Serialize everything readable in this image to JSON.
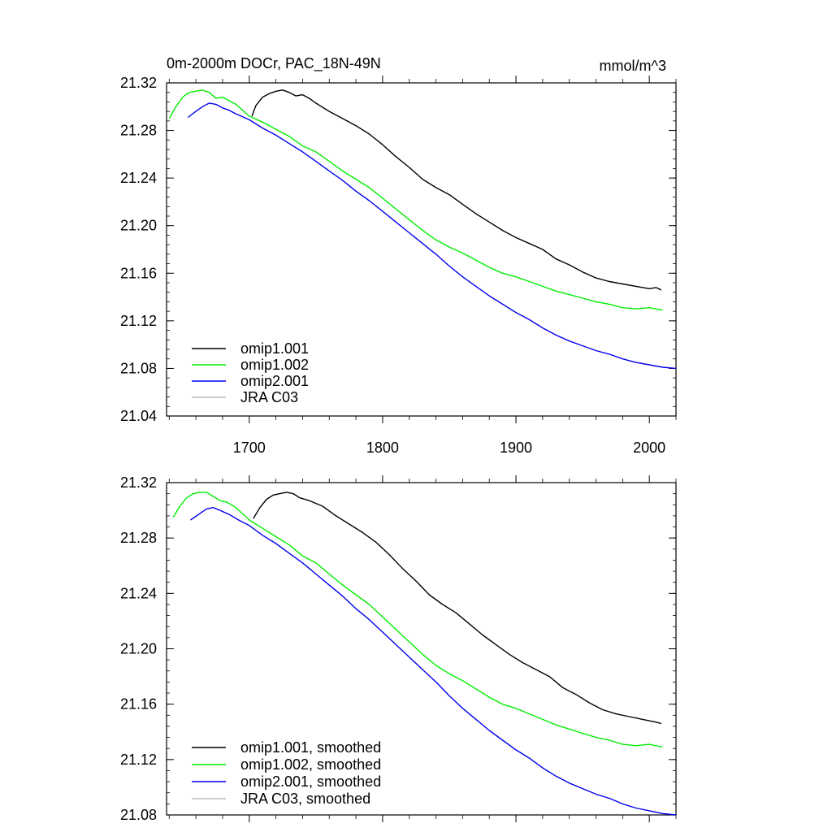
{
  "header": {
    "title": "0m-2000m DOCr, PAC_18N-49N",
    "units": "mmol/m^3"
  },
  "colors": {
    "omip1_001": "#000000",
    "omip1_002": "#00ee00",
    "omip2_001": "#0000ee",
    "jra_c03": "#bbbbbb"
  },
  "chart_data": [
    {
      "type": "line",
      "title": "0m-2000m DOCr, PAC_18N-49N",
      "units": "mmol/m^3",
      "xlim": [
        1638,
        2020
      ],
      "ylim": [
        21.04,
        21.32
      ],
      "x_ticks": [
        1700,
        1800,
        1900,
        2000
      ],
      "x_tick_labels": [
        "1700",
        "1800",
        "1900",
        "2000"
      ],
      "y_ticks": [
        21.04,
        21.08,
        21.12,
        21.16,
        21.2,
        21.24,
        21.28,
        21.32
      ],
      "y_tick_labels": [
        "21.04",
        "21.08",
        "21.12",
        "21.16",
        "21.20",
        "21.24",
        "21.28",
        "21.32"
      ],
      "legend_position": "bottom-left",
      "grid": false,
      "series": [
        {
          "name": "omip1.001",
          "color": "#000000",
          "x": [
            1702,
            1705,
            1710,
            1715,
            1720,
            1725,
            1730,
            1735,
            1740,
            1745,
            1750,
            1760,
            1770,
            1780,
            1790,
            1800,
            1810,
            1820,
            1830,
            1840,
            1850,
            1860,
            1870,
            1880,
            1890,
            1900,
            1910,
            1920,
            1930,
            1940,
            1950,
            1960,
            1970,
            1980,
            1990,
            2000,
            2005,
            2009
          ],
          "y": [
            21.292,
            21.301,
            21.308,
            21.311,
            21.313,
            21.314,
            21.312,
            21.309,
            21.31,
            21.307,
            21.303,
            21.296,
            21.29,
            21.284,
            21.277,
            21.268,
            21.258,
            21.249,
            21.239,
            21.232,
            21.226,
            21.218,
            21.21,
            21.203,
            21.196,
            21.19,
            21.185,
            21.18,
            21.172,
            21.167,
            21.161,
            21.156,
            21.153,
            21.151,
            21.149,
            21.147,
            21.148,
            21.146
          ]
        },
        {
          "name": "omip1.002",
          "color": "#00ee00",
          "x": [
            1640,
            1645,
            1650,
            1655,
            1660,
            1665,
            1670,
            1675,
            1680,
            1685,
            1690,
            1695,
            1700,
            1710,
            1720,
            1730,
            1740,
            1750,
            1760,
            1770,
            1780,
            1790,
            1800,
            1810,
            1820,
            1830,
            1840,
            1850,
            1860,
            1870,
            1880,
            1890,
            1900,
            1910,
            1920,
            1930,
            1940,
            1950,
            1960,
            1970,
            1980,
            1990,
            2000,
            2005,
            2010
          ],
          "y": [
            21.29,
            21.3,
            21.308,
            21.312,
            21.313,
            21.314,
            21.312,
            21.307,
            21.308,
            21.305,
            21.302,
            21.297,
            21.292,
            21.287,
            21.281,
            21.275,
            21.267,
            21.262,
            21.254,
            21.246,
            21.239,
            21.232,
            21.223,
            21.214,
            21.205,
            21.196,
            21.188,
            21.182,
            21.177,
            21.171,
            21.165,
            21.16,
            21.157,
            21.153,
            21.149,
            21.145,
            21.142,
            21.139,
            21.136,
            21.134,
            21.131,
            21.13,
            21.131,
            21.13,
            21.129
          ]
        },
        {
          "name": "omip2.001",
          "color": "#0000ee",
          "x": [
            1654,
            1660,
            1665,
            1670,
            1675,
            1680,
            1685,
            1690,
            1700,
            1710,
            1720,
            1730,
            1740,
            1750,
            1760,
            1770,
            1780,
            1790,
            1800,
            1810,
            1820,
            1830,
            1840,
            1850,
            1860,
            1870,
            1880,
            1890,
            1900,
            1910,
            1920,
            1930,
            1940,
            1950,
            1960,
            1970,
            1980,
            1990,
            2000,
            2010,
            2020
          ],
          "y": [
            21.291,
            21.296,
            21.3,
            21.303,
            21.302,
            21.299,
            21.297,
            21.294,
            21.289,
            21.282,
            21.276,
            21.269,
            21.262,
            21.254,
            21.246,
            21.238,
            21.229,
            21.221,
            21.212,
            21.203,
            21.194,
            21.185,
            21.176,
            21.166,
            21.157,
            21.149,
            21.141,
            21.134,
            21.127,
            21.121,
            21.114,
            21.108,
            21.103,
            21.099,
            21.095,
            21.092,
            21.088,
            21.085,
            21.083,
            21.081,
            21.08
          ]
        },
        {
          "name": "JRA C03",
          "color": "#bbbbbb",
          "x": [],
          "y": []
        }
      ]
    },
    {
      "type": "line",
      "xlim": [
        1638,
        2020
      ],
      "ylim": [
        21.08,
        21.32
      ],
      "x_ticks": [
        1700,
        1800,
        1900,
        2000
      ],
      "y_ticks": [
        21.08,
        21.12,
        21.16,
        21.2,
        21.24,
        21.28,
        21.32
      ],
      "y_tick_labels": [
        "21.08",
        "21.12",
        "21.16",
        "21.20",
        "21.24",
        "21.28",
        "21.32"
      ],
      "legend_position": "bottom-left",
      "grid": false,
      "series": [
        {
          "name": "omip1.001, smoothed",
          "color": "#000000",
          "x": [
            1703,
            1708,
            1713,
            1718,
            1723,
            1728,
            1733,
            1738,
            1745,
            1755,
            1765,
            1775,
            1785,
            1795,
            1805,
            1815,
            1825,
            1835,
            1845,
            1855,
            1865,
            1875,
            1885,
            1895,
            1905,
            1915,
            1925,
            1935,
            1945,
            1955,
            1965,
            1975,
            1985,
            1995,
            2005,
            2009
          ],
          "y": [
            21.294,
            21.302,
            21.308,
            21.311,
            21.312,
            21.313,
            21.312,
            21.309,
            21.307,
            21.303,
            21.296,
            21.29,
            21.284,
            21.277,
            21.268,
            21.258,
            21.249,
            21.239,
            21.232,
            21.226,
            21.218,
            21.21,
            21.203,
            21.196,
            21.19,
            21.185,
            21.18,
            21.172,
            21.167,
            21.161,
            21.156,
            21.153,
            21.151,
            21.149,
            21.147,
            21.146
          ]
        },
        {
          "name": "omip1.002, smoothed",
          "color": "#00ee00",
          "x": [
            1643,
            1648,
            1653,
            1658,
            1663,
            1668,
            1673,
            1678,
            1683,
            1690,
            1700,
            1710,
            1720,
            1730,
            1740,
            1750,
            1760,
            1770,
            1780,
            1790,
            1800,
            1810,
            1820,
            1830,
            1840,
            1850,
            1860,
            1870,
            1880,
            1890,
            1900,
            1910,
            1920,
            1930,
            1940,
            1950,
            1960,
            1970,
            1980,
            1990,
            2000,
            2010
          ],
          "y": [
            21.295,
            21.303,
            21.309,
            21.312,
            21.313,
            21.313,
            21.31,
            21.307,
            21.306,
            21.302,
            21.293,
            21.287,
            21.281,
            21.275,
            21.267,
            21.262,
            21.254,
            21.246,
            21.239,
            21.232,
            21.223,
            21.214,
            21.205,
            21.196,
            21.188,
            21.182,
            21.177,
            21.171,
            21.165,
            21.16,
            21.157,
            21.153,
            21.149,
            21.145,
            21.142,
            21.139,
            21.136,
            21.134,
            21.131,
            21.13,
            21.131,
            21.129
          ]
        },
        {
          "name": "omip2.001, smoothed",
          "color": "#0000ee",
          "x": [
            1656,
            1662,
            1668,
            1673,
            1678,
            1685,
            1692,
            1700,
            1710,
            1720,
            1730,
            1740,
            1750,
            1760,
            1770,
            1780,
            1790,
            1800,
            1810,
            1820,
            1830,
            1840,
            1850,
            1860,
            1870,
            1880,
            1890,
            1900,
            1910,
            1920,
            1930,
            1940,
            1950,
            1960,
            1970,
            1980,
            1990,
            2000,
            2010,
            2020
          ],
          "y": [
            21.293,
            21.297,
            21.301,
            21.302,
            21.3,
            21.297,
            21.293,
            21.289,
            21.282,
            21.276,
            21.269,
            21.262,
            21.254,
            21.246,
            21.238,
            21.229,
            21.221,
            21.212,
            21.203,
            21.194,
            21.185,
            21.176,
            21.166,
            21.157,
            21.149,
            21.141,
            21.134,
            21.127,
            21.121,
            21.114,
            21.108,
            21.103,
            21.099,
            21.095,
            21.092,
            21.088,
            21.085,
            21.083,
            21.081,
            21.08
          ]
        },
        {
          "name": "JRA C03, smoothed",
          "color": "#bbbbbb",
          "x": [],
          "y": []
        }
      ]
    }
  ]
}
